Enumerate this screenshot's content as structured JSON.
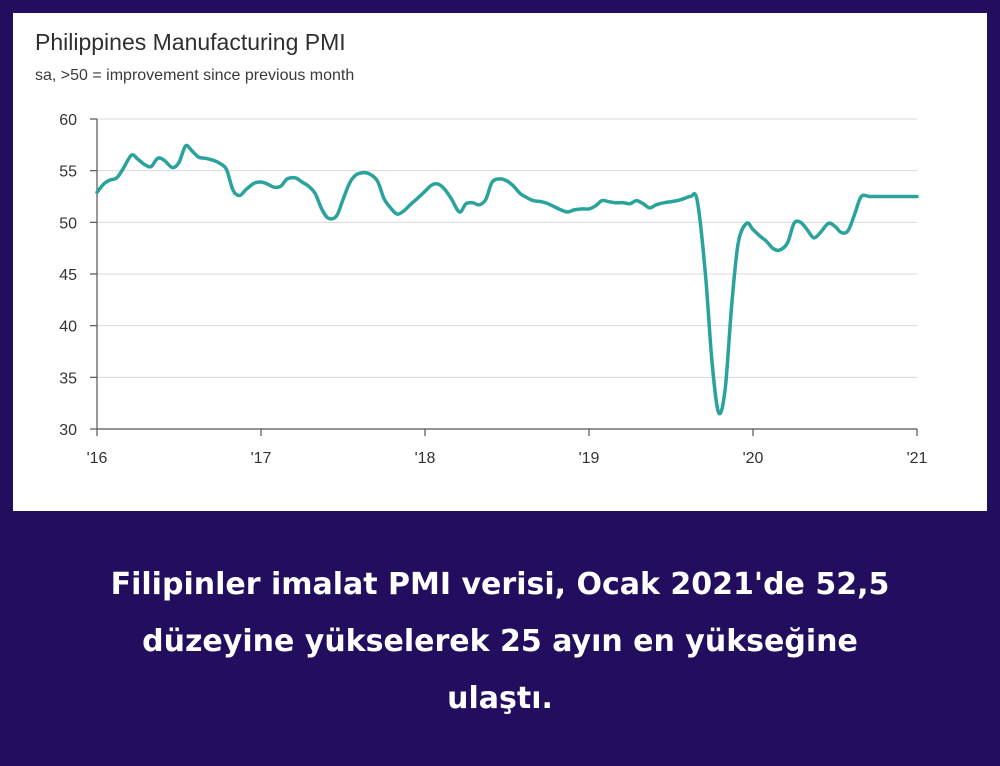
{
  "chart_data": {
    "type": "line",
    "title": "Philippines Manufacturing PMI",
    "subtitle": "sa, >50 = improvement since previous month",
    "ylim": [
      30,
      60
    ],
    "yticks": [
      30,
      35,
      40,
      45,
      50,
      55,
      60
    ],
    "xlim": [
      2016.0,
      2021.0
    ],
    "xtick_labels": [
      "'16",
      "'17",
      "'18",
      "'19",
      "'20",
      "'21"
    ],
    "grid": "horizontal",
    "line_color": "#2aa39c",
    "series": [
      {
        "x": [
          2016.0,
          2016.04,
          2016.08,
          2016.12,
          2016.16,
          2016.21,
          2016.25,
          2016.29,
          2016.33,
          2016.37,
          2016.41,
          2016.46,
          2016.5,
          2016.54,
          2016.58,
          2016.62,
          2016.66,
          2016.71,
          2016.75,
          2016.79,
          2016.83,
          2016.87,
          2016.91,
          2016.96,
          2017.0,
          2017.04,
          2017.08,
          2017.12,
          2017.16,
          2017.21,
          2017.25,
          2017.29,
          2017.33,
          2017.37,
          2017.41,
          2017.46,
          2017.5,
          2017.54,
          2017.58,
          2017.62,
          2017.66,
          2017.71,
          2017.75,
          2017.79,
          2017.83,
          2017.87,
          2017.91,
          2017.96,
          2018.0,
          2018.04,
          2018.08,
          2018.12,
          2018.16,
          2018.21,
          2018.25,
          2018.29,
          2018.33,
          2018.37,
          2018.41,
          2018.46,
          2018.5,
          2018.54,
          2018.58,
          2018.62,
          2018.66,
          2018.71,
          2018.75,
          2018.79,
          2018.83,
          2018.87,
          2018.91,
          2018.96,
          2019.0,
          2019.04,
          2019.08,
          2019.12,
          2019.16,
          2019.21,
          2019.25,
          2019.29,
          2019.33,
          2019.37,
          2019.41,
          2019.46,
          2019.5,
          2019.54,
          2019.58,
          2019.62,
          2019.66,
          2019.71,
          2019.75,
          2019.79,
          2019.83,
          2019.87,
          2019.91,
          2019.96,
          2020.0,
          2020.04,
          2020.08,
          2020.12,
          2020.16,
          2020.21,
          2020.25,
          2020.29,
          2020.33,
          2020.37,
          2020.41,
          2020.46,
          2020.5,
          2020.54,
          2020.58,
          2020.62,
          2020.66,
          2020.71,
          2020.75,
          2020.79,
          2020.83,
          2020.87,
          2020.91,
          2020.96,
          2021.0
        ],
        "y": [
          52.9,
          53.7,
          54.1,
          54.3,
          55.2,
          56.5,
          56.1,
          55.6,
          55.4,
          56.2,
          56.0,
          55.3,
          55.8,
          57.4,
          56.9,
          56.3,
          56.2,
          56.0,
          55.7,
          55.1,
          53.1,
          52.6,
          53.2,
          53.8,
          53.9,
          53.7,
          53.4,
          53.5,
          54.2,
          54.3,
          53.9,
          53.5,
          52.8,
          51.3,
          50.4,
          50.6,
          52.2,
          53.8,
          54.6,
          54.8,
          54.7,
          54.0,
          52.3,
          51.4,
          50.8,
          51.1,
          51.7,
          52.4,
          53.0,
          53.6,
          53.7,
          53.2,
          52.3,
          51.0,
          51.8,
          51.9,
          51.7,
          52.2,
          53.9,
          54.2,
          54.0,
          53.5,
          52.8,
          52.4,
          52.1,
          52.0,
          51.8,
          51.5,
          51.2,
          51.0,
          51.2,
          51.3,
          51.3,
          51.6,
          52.1,
          52.0,
          51.9,
          51.9,
          51.8,
          52.1,
          51.8,
          51.4,
          51.7,
          51.9,
          52.0,
          52.1,
          52.3,
          52.5,
          52.1,
          45.0,
          36.5,
          31.6,
          33.8,
          42.0,
          48.0,
          49.9,
          49.3,
          48.7,
          48.2,
          47.5,
          47.3,
          48.0,
          49.9,
          50.0,
          49.3,
          48.5,
          49.0,
          49.9,
          49.6,
          49.0,
          49.2,
          50.8,
          52.5,
          52.5,
          52.5,
          52.5,
          52.5,
          52.5,
          52.5,
          52.5,
          52.5
        ]
      }
    ]
  },
  "caption": {
    "lines": [
      "Filipinler imalat PMI verisi, Ocak 2021'de 52,5",
      "düzeyine yükselerek 25 ayın en yükseğine",
      "ulaştı."
    ]
  }
}
